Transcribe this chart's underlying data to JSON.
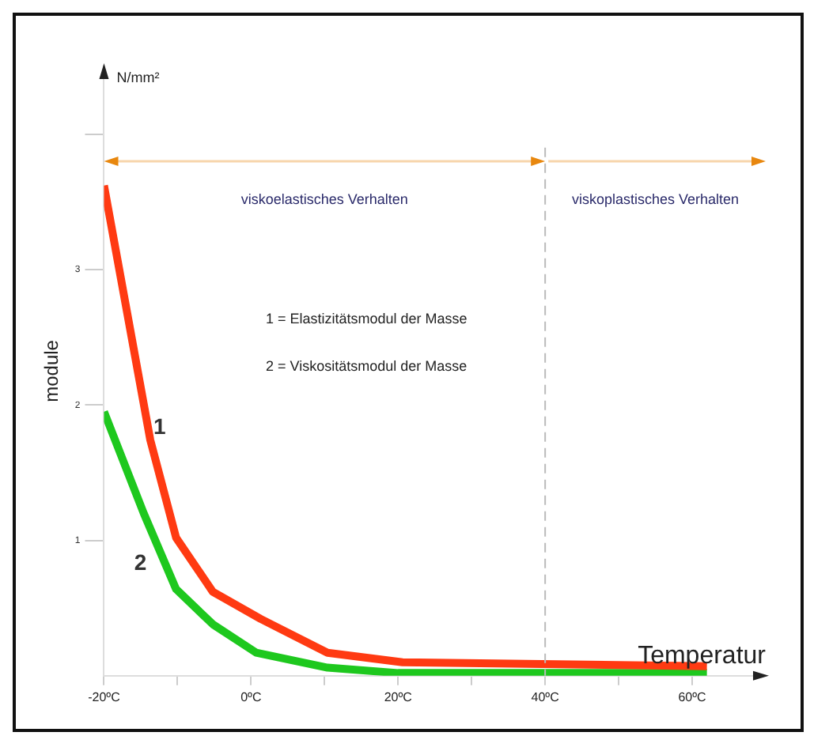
{
  "chart_data": {
    "type": "line",
    "xlabel": "Temperatur",
    "ylabel": "module",
    "annotations": [
      "N/mm²",
      "1 = Elastizitätsmodul der Masse",
      "2 = Viskositätsmodul der Masse",
      "viskoelastisches Verhalten",
      "viskoplastisches Verhalten"
    ],
    "series": [
      {
        "name": "1",
        "color": "#ff3a12",
        "x": [
          -20,
          -13.7,
          -10.2,
          -5.2,
          1.3,
          10.4,
          20.6,
          62
        ],
        "values": [
          3.62,
          1.74,
          1.02,
          0.62,
          0.42,
          0.17,
          0.1,
          0.07
        ]
      },
      {
        "name": "2",
        "color": "#1ec81e",
        "x": [
          -20,
          -14.6,
          -10.2,
          -5.2,
          0.7,
          10.4,
          20,
          62
        ],
        "values": [
          1.95,
          1.2,
          0.64,
          0.38,
          0.17,
          0.06,
          0.02,
          0.02
        ]
      }
    ],
    "xlim": [
      -20,
      70
    ],
    "xticks": [
      {
        "value": -20,
        "label": "-20ºC"
      },
      {
        "value": -10,
        "label": null
      },
      {
        "value": 0,
        "label": "0ºC"
      },
      {
        "value": 10,
        "label": null
      },
      {
        "value": 20,
        "label": "20ºC"
      },
      {
        "value": 30,
        "label": null
      },
      {
        "value": 40,
        "label": "40ºC"
      },
      {
        "value": 50,
        "label": null
      },
      {
        "value": 60,
        "label": "60ºC"
      }
    ],
    "ylim": [
      0,
      4.5
    ],
    "yticks": [
      1,
      2,
      3,
      {
        "value": 4,
        "label": null
      }
    ],
    "ref_lines": [
      {
        "axis": "x",
        "value": 40,
        "color": "#bbbbbb",
        "line_style": "dashed"
      }
    ],
    "grid": false,
    "legend": false,
    "marker": "none",
    "line_style": "solid"
  }
}
